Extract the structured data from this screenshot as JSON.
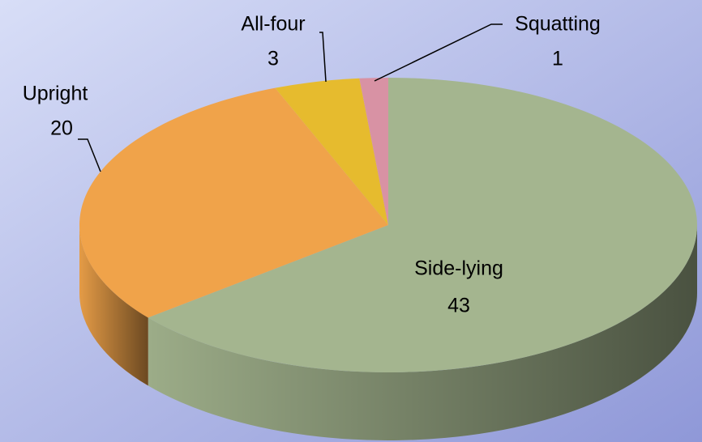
{
  "chart_data": {
    "type": "pie3d",
    "categories": [
      "Side-lying",
      "Upright",
      "All-four",
      "Squatting"
    ],
    "values": [
      43,
      20,
      3,
      1
    ],
    "colors": [
      "#a4b58f",
      "#f0a34a",
      "#e6bb2e",
      "#d892a4"
    ]
  }
}
